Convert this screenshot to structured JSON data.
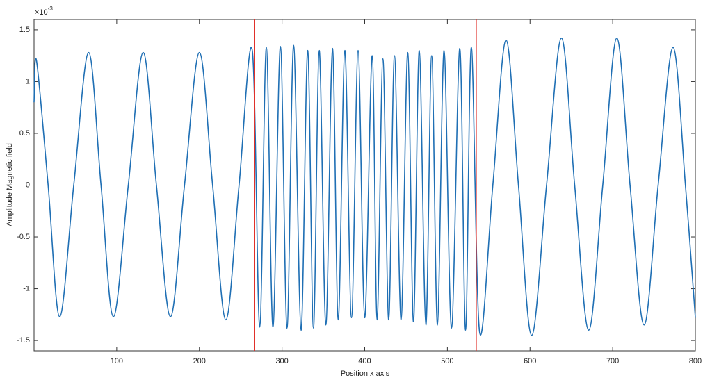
{
  "chart_data": {
    "type": "line",
    "xlabel": "Position x axis",
    "ylabel": "Amplitude Magnetic field",
    "y_multiplier": {
      "base": "×10",
      "exponent": "-3"
    },
    "xlim": [
      0,
      800
    ],
    "ylim": [
      -1.6,
      1.6
    ],
    "xticks": [
      100,
      200,
      300,
      400,
      500,
      600,
      700,
      800
    ],
    "yticks": [
      -1.5,
      -1,
      -0.5,
      0,
      0.5,
      1,
      1.5
    ],
    "vlines": [
      {
        "x": 267,
        "color": "#e0302a"
      },
      {
        "x": 535,
        "color": "#e0302a"
      }
    ],
    "x": [
      0,
      3,
      17,
      31,
      48,
      66,
      81,
      96,
      114,
      132,
      148,
      165,
      182,
      200,
      216,
      232,
      248,
      264,
      273,
      281,
      289,
      298,
      306,
      314,
      323,
      331,
      338,
      345,
      353,
      361,
      368,
      376,
      384,
      392,
      400,
      409,
      415,
      422,
      429,
      436,
      444,
      452,
      459,
      466,
      474,
      481,
      488,
      496,
      505,
      515,
      522,
      529,
      539,
      555,
      571,
      586,
      602,
      620,
      638,
      654,
      671,
      688,
      705,
      721,
      738,
      755,
      773,
      788,
      800
    ],
    "series": [
      {
        "color": "#1f6fb4",
        "values": [
          0.8,
          1.2,
          0,
          -1.27,
          0,
          1.28,
          0,
          -1.27,
          0,
          1.28,
          0,
          -1.27,
          0,
          1.28,
          0,
          -1.3,
          0,
          1.3,
          -1.37,
          1.33,
          -1.37,
          1.34,
          -1.38,
          1.35,
          -1.4,
          1.3,
          -1.38,
          1.3,
          -1.35,
          1.32,
          -1.3,
          1.3,
          -1.28,
          1.3,
          -1.28,
          1.25,
          -1.3,
          1.22,
          -1.3,
          1.25,
          -1.3,
          1.28,
          -1.32,
          1.3,
          -1.35,
          1.25,
          -1.35,
          1.3,
          -1.38,
          1.32,
          -1.4,
          1.33,
          -1.42,
          0,
          1.4,
          0,
          -1.45,
          0,
          1.42,
          0,
          -1.4,
          0,
          1.42,
          0,
          -1.35,
          0,
          1.33,
          0,
          -1.28
        ]
      }
    ]
  }
}
